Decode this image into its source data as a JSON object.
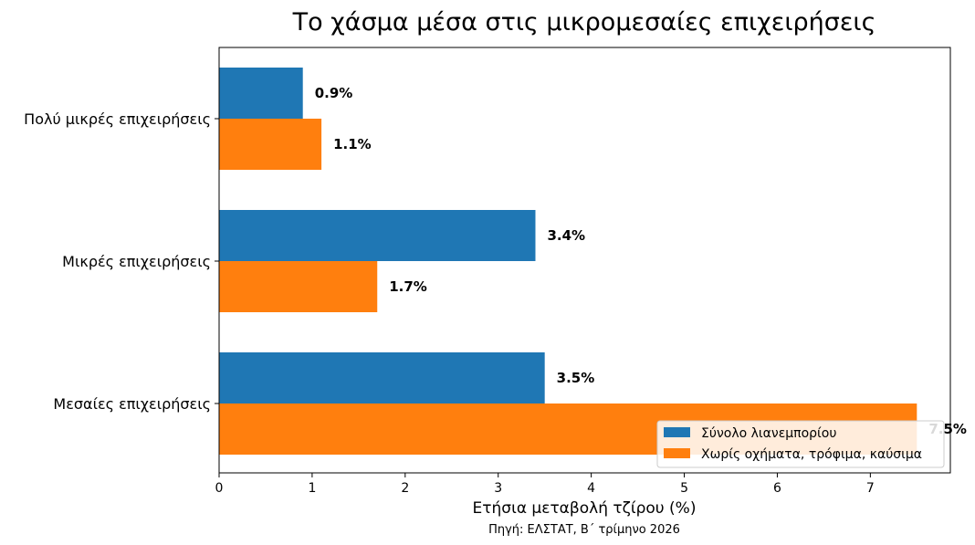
{
  "chart_data": {
    "type": "bar",
    "orientation": "horizontal",
    "title": "Το χάσμα μέσα στις μικρομεσαίες επιχειρήσεις",
    "xlabel": "Ετήσια μεταβολή τζίρου (%)",
    "ylabel": "",
    "source_note": "Πηγή: ΕΛΣΤΑΤ, Β΄ τρίμηνο 2026",
    "categories": [
      "Πολύ μικρές επιχειρήσεις",
      "Μικρές επιχειρήσεις",
      "Μεσαίες επιχειρήσεις"
    ],
    "series": [
      {
        "name": "Σύνολο λιανεμπορίου",
        "values": [
          0.9,
          3.4,
          3.5
        ],
        "labels": [
          "0.9%",
          "3.4%",
          "3.5%"
        ],
        "color": "#1f77b4"
      },
      {
        "name": "Χωρίς οχήματα, τρόφιμα, καύσιμα",
        "values": [
          1.1,
          1.7,
          7.5
        ],
        "labels": [
          "1.1%",
          "1.7%",
          "7.5%"
        ],
        "color": "#ff7f0e"
      }
    ],
    "xlim": [
      0,
      7.86
    ],
    "xticks": [
      "0",
      "1",
      "2",
      "3",
      "4",
      "5",
      "6",
      "7"
    ],
    "grid": false,
    "legend_position": "lower-right"
  }
}
